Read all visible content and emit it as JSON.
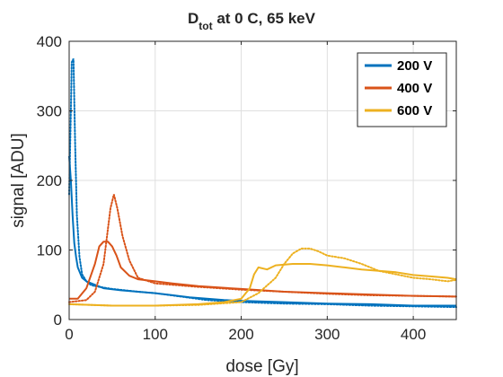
{
  "chart_data": {
    "type": "line",
    "title": {
      "main": "D",
      "subscript": "tot",
      "rest": " at 0 C, 65 keV"
    },
    "xlabel": "dose [Gy]",
    "ylabel": "signal [ADU]",
    "xlim": [
      0,
      450
    ],
    "ylim": [
      0,
      400
    ],
    "xticks": [
      0,
      100,
      200,
      300,
      400
    ],
    "yticks": [
      0,
      100,
      200,
      300,
      400
    ],
    "grid": true,
    "legend_position": "top-right",
    "series": [
      {
        "name": "200 V",
        "color": "#0072BD",
        "solid": [
          [
            0,
            235
          ],
          [
            2,
            200
          ],
          [
            4,
            150
          ],
          [
            6,
            110
          ],
          [
            8,
            90
          ],
          [
            10,
            75
          ],
          [
            15,
            60
          ],
          [
            20,
            55
          ],
          [
            30,
            50
          ],
          [
            40,
            45
          ],
          [
            60,
            42
          ],
          [
            80,
            40
          ],
          [
            100,
            38
          ],
          [
            120,
            35
          ],
          [
            140,
            32
          ],
          [
            160,
            30
          ],
          [
            180,
            28
          ],
          [
            200,
            27
          ],
          [
            250,
            25
          ],
          [
            300,
            23
          ],
          [
            350,
            22
          ],
          [
            400,
            20
          ],
          [
            450,
            20
          ]
        ],
        "dotted": [
          [
            0,
            180
          ],
          [
            2,
            300
          ],
          [
            3,
            370
          ],
          [
            5,
            375
          ],
          [
            7,
            250
          ],
          [
            9,
            150
          ],
          [
            12,
            90
          ],
          [
            15,
            65
          ],
          [
            20,
            55
          ],
          [
            25,
            50
          ],
          [
            30,
            48
          ],
          [
            50,
            44
          ],
          [
            80,
            40
          ],
          [
            100,
            38
          ],
          [
            130,
            33
          ],
          [
            160,
            28
          ],
          [
            200,
            25
          ],
          [
            250,
            23
          ],
          [
            300,
            22
          ],
          [
            350,
            20
          ],
          [
            400,
            19
          ],
          [
            450,
            18
          ]
        ]
      },
      {
        "name": "400 V",
        "color": "#D95319",
        "solid": [
          [
            0,
            30
          ],
          [
            10,
            30
          ],
          [
            20,
            45
          ],
          [
            30,
            80
          ],
          [
            35,
            105
          ],
          [
            40,
            112
          ],
          [
            45,
            112
          ],
          [
            50,
            105
          ],
          [
            55,
            92
          ],
          [
            60,
            75
          ],
          [
            70,
            63
          ],
          [
            80,
            58
          ],
          [
            100,
            55
          ],
          [
            120,
            52
          ],
          [
            150,
            48
          ],
          [
            200,
            44
          ],
          [
            250,
            40
          ],
          [
            300,
            38
          ],
          [
            350,
            36
          ],
          [
            400,
            34
          ],
          [
            450,
            33
          ]
        ],
        "dotted": [
          [
            0,
            25
          ],
          [
            20,
            28
          ],
          [
            30,
            40
          ],
          [
            40,
            80
          ],
          [
            48,
            160
          ],
          [
            52,
            180
          ],
          [
            56,
            160
          ],
          [
            62,
            120
          ],
          [
            70,
            85
          ],
          [
            80,
            60
          ],
          [
            100,
            52
          ],
          [
            150,
            47
          ],
          [
            200,
            43
          ],
          [
            250,
            40
          ],
          [
            300,
            37
          ],
          [
            350,
            35
          ],
          [
            400,
            34
          ],
          [
            450,
            33
          ]
        ]
      },
      {
        "name": "600 V",
        "color": "#EDB120",
        "solid": [
          [
            0,
            22
          ],
          [
            50,
            20
          ],
          [
            100,
            20
          ],
          [
            150,
            22
          ],
          [
            180,
            25
          ],
          [
            200,
            30
          ],
          [
            210,
            45
          ],
          [
            215,
            65
          ],
          [
            220,
            75
          ],
          [
            230,
            72
          ],
          [
            240,
            78
          ],
          [
            260,
            80
          ],
          [
            280,
            80
          ],
          [
            300,
            78
          ],
          [
            320,
            75
          ],
          [
            340,
            72
          ],
          [
            360,
            70
          ],
          [
            380,
            68
          ],
          [
            400,
            64
          ],
          [
            420,
            62
          ],
          [
            440,
            60
          ],
          [
            450,
            58
          ]
        ],
        "dotted": [
          [
            0,
            22
          ],
          [
            50,
            20
          ],
          [
            100,
            20
          ],
          [
            150,
            21
          ],
          [
            200,
            25
          ],
          [
            220,
            38
          ],
          [
            240,
            60
          ],
          [
            250,
            80
          ],
          [
            260,
            95
          ],
          [
            270,
            102
          ],
          [
            280,
            102
          ],
          [
            290,
            98
          ],
          [
            300,
            92
          ],
          [
            320,
            88
          ],
          [
            340,
            80
          ],
          [
            360,
            70
          ],
          [
            380,
            65
          ],
          [
            400,
            60
          ],
          [
            420,
            58
          ],
          [
            440,
            55
          ],
          [
            450,
            57
          ]
        ]
      }
    ]
  }
}
